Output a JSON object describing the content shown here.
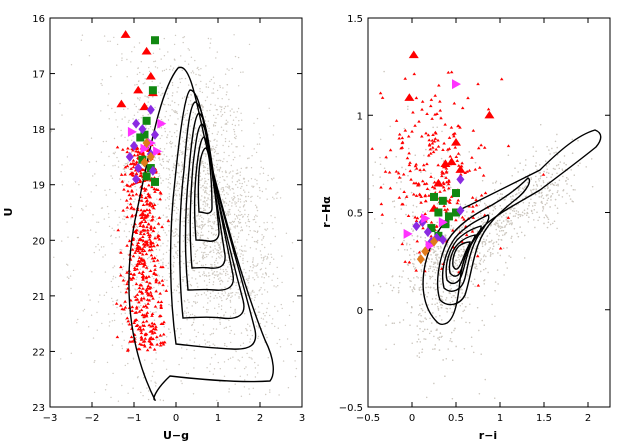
{
  "chart_data": [
    {
      "type": "scatter",
      "panel": "left",
      "xlabel": "U−g",
      "ylabel": "U",
      "xlim": [
        -3,
        3
      ],
      "ylim": [
        23,
        16
      ],
      "y_inverted": true,
      "x_ticks": [
        "−3",
        "−2",
        "−1",
        "0",
        "1",
        "2",
        "3"
      ],
      "y_ticks": [
        "16",
        "17",
        "18",
        "19",
        "20",
        "21",
        "22",
        "23"
      ],
      "colors": {
        "background_points": "#cdc8c0",
        "small_triangles": "#ff0000",
        "large_triangles": "#ff0000",
        "squares": "#118811",
        "diamonds": "#8a2be2",
        "right_triangles": "#ff33ff",
        "orange_diamonds": "#e07b1a",
        "contours": "#000000"
      },
      "series": [
        {
          "marker": "large-triangle",
          "color": "#ff0000",
          "points": [
            [
              -1.2,
              16.3
            ],
            [
              -0.7,
              16.6
            ],
            [
              -0.6,
              17.05
            ],
            [
              -1.3,
              17.55
            ],
            [
              -0.9,
              17.3
            ],
            [
              -0.55,
              17.35
            ],
            [
              -0.75,
              17.6
            ],
            [
              -0.65,
              18.25
            ]
          ]
        },
        {
          "marker": "square",
          "color": "#118811",
          "points": [
            [
              -0.5,
              16.4
            ],
            [
              -0.55,
              17.3
            ],
            [
              -0.7,
              17.85
            ],
            [
              -0.85,
              18.15
            ],
            [
              -0.75,
              18.1
            ],
            [
              -0.6,
              18.7
            ],
            [
              -0.7,
              18.85
            ],
            [
              -0.5,
              18.95
            ],
            [
              -0.8,
              18.55
            ]
          ]
        },
        {
          "marker": "diamond",
          "color": "#8a2be2",
          "points": [
            [
              -0.6,
              17.65
            ],
            [
              -0.95,
              17.9
            ],
            [
              -0.8,
              18.0
            ],
            [
              -0.5,
              18.1
            ],
            [
              -1.0,
              18.3
            ],
            [
              -0.6,
              18.45
            ],
            [
              -1.1,
              18.5
            ],
            [
              -0.9,
              18.7
            ],
            [
              -0.55,
              18.75
            ],
            [
              -0.95,
              18.9
            ]
          ]
        },
        {
          "marker": "right-triangle",
          "color": "#ff33ff",
          "points": [
            [
              -0.35,
              17.9
            ],
            [
              -1.05,
              18.05
            ],
            [
              -0.6,
              18.25
            ],
            [
              -0.45,
              18.4
            ],
            [
              -0.75,
              18.35
            ]
          ]
        },
        {
          "marker": "orange-diamond",
          "color": "#e07b1a",
          "points": [
            [
              -0.7,
              18.25
            ],
            [
              -0.6,
              18.5
            ],
            [
              -0.75,
              18.6
            ]
          ]
        }
      ]
    },
    {
      "type": "scatter",
      "panel": "right",
      "xlabel": "r−i",
      "ylabel": "r−Hα",
      "xlim": [
        -0.5,
        2.25
      ],
      "ylim": [
        -0.5,
        1.5
      ],
      "x_ticks": [
        "−0.5",
        "0",
        "0.5",
        "1",
        "1.5",
        "2"
      ],
      "y_ticks": [
        "−0.5",
        "0",
        "0.5",
        "1",
        "1.5"
      ],
      "series": [
        {
          "marker": "large-triangle",
          "color": "#ff0000",
          "points": [
            [
              0.02,
              1.31
            ],
            [
              -0.03,
              1.09
            ],
            [
              0.88,
              1.0
            ],
            [
              0.5,
              0.86
            ],
            [
              0.45,
              0.76
            ],
            [
              0.38,
              0.75
            ],
            [
              0.55,
              0.72
            ],
            [
              0.3,
              0.65
            ],
            [
              0.25,
              0.52
            ]
          ]
        },
        {
          "marker": "square",
          "color": "#118811",
          "points": [
            [
              0.25,
              0.58
            ],
            [
              0.35,
              0.56
            ],
            [
              0.5,
              0.6
            ],
            [
              0.3,
              0.5
            ],
            [
              0.42,
              0.48
            ],
            [
              0.38,
              0.44
            ],
            [
              0.22,
              0.42
            ],
            [
              0.3,
              0.38
            ],
            [
              0.5,
              0.5
            ]
          ]
        },
        {
          "marker": "diamond",
          "color": "#8a2be2",
          "points": [
            [
              0.05,
              0.43
            ],
            [
              0.12,
              0.45
            ],
            [
              0.18,
              0.4
            ],
            [
              0.22,
              0.35
            ],
            [
              0.28,
              0.37
            ],
            [
              0.35,
              0.36
            ],
            [
              0.55,
              0.67
            ],
            [
              0.55,
              0.51
            ]
          ]
        },
        {
          "marker": "right-triangle",
          "color": "#ff33ff",
          "points": [
            [
              0.5,
              1.16
            ],
            [
              -0.05,
              0.39
            ],
            [
              0.15,
              0.47
            ],
            [
              0.35,
              0.45
            ],
            [
              0.2,
              0.33
            ]
          ]
        },
        {
          "marker": "orange-diamond",
          "color": "#e07b1a",
          "points": [
            [
              0.1,
              0.26
            ],
            [
              0.15,
              0.3
            ],
            [
              0.25,
              0.35
            ]
          ]
        }
      ]
    }
  ]
}
